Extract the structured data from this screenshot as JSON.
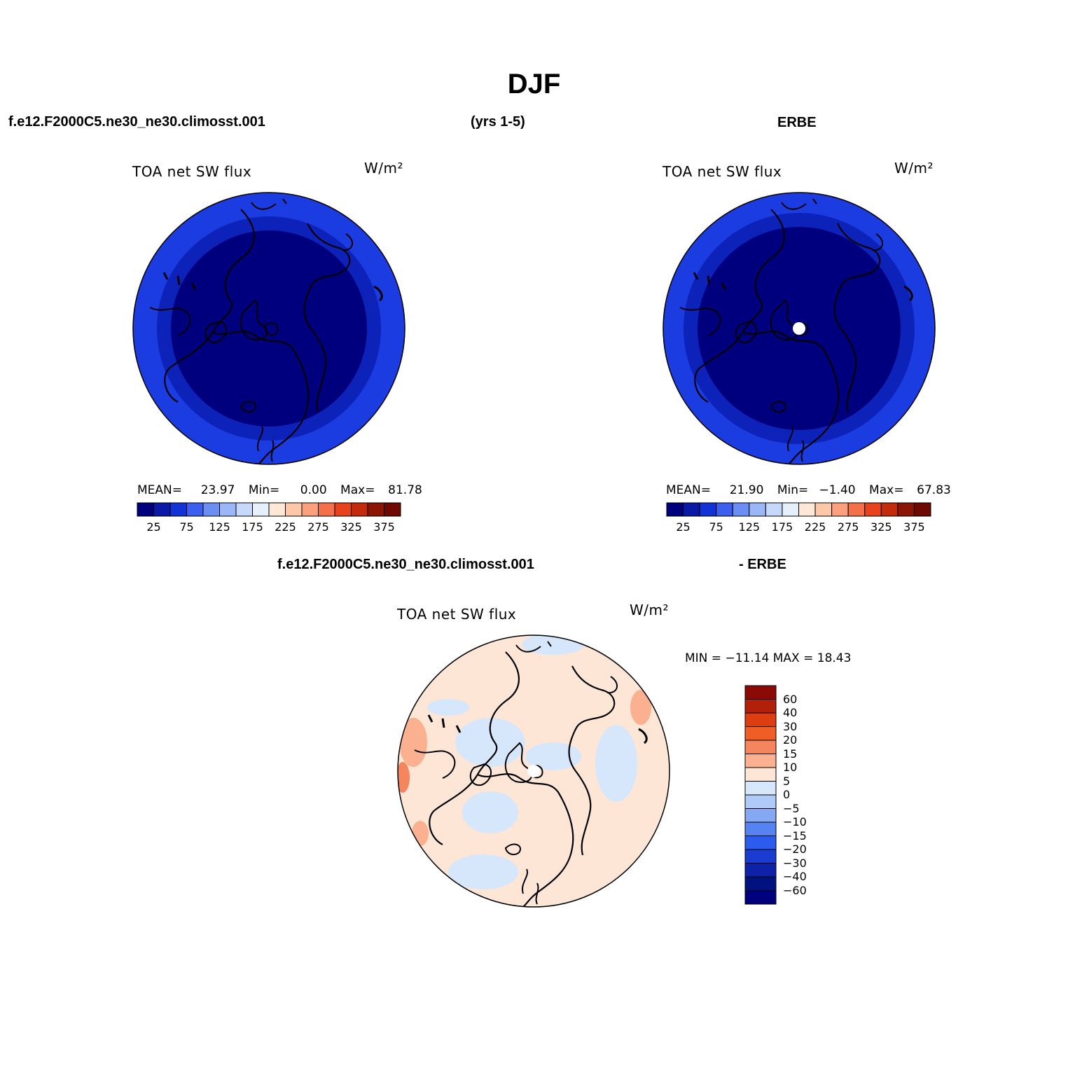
{
  "figure": {
    "title": "DJF",
    "case_name": "f.e12.F2000C5.ne30_ne30.climosst.001",
    "years": "(yrs 1-5)",
    "obs_name": "ERBE",
    "diff_case_name": "f.e12.F2000C5.ne30_ne30.climosst.001",
    "diff_obs_name": "- ERBE"
  },
  "panels": [
    {
      "id": "model",
      "variable": "TOA net SW flux",
      "units": "W/m²",
      "stats": {
        "mean_label": "MEAN=",
        "mean": "23.97",
        "min_label": "Min=",
        "min": "0.00",
        "max_label": "Max=",
        "max": "81.78"
      },
      "colorbar": [
        "25",
        "75",
        "125",
        "175",
        "225",
        "275",
        "325",
        "375"
      ]
    },
    {
      "id": "obs",
      "variable": "TOA net SW flux",
      "units": "W/m²",
      "stats": {
        "mean_label": "MEAN=",
        "mean": "21.90",
        "min_label": "Min=",
        "min": "−1.40",
        "max_label": "Max=",
        "max": "67.83"
      },
      "colorbar": [
        "25",
        "75",
        "125",
        "175",
        "225",
        "275",
        "325",
        "375"
      ]
    },
    {
      "id": "diff",
      "variable": "TOA net SW flux",
      "units": "W/m²",
      "stats_text": "MIN = −11.14 MAX =   18.43",
      "colorbar": [
        "60",
        "40",
        "30",
        "20",
        "15",
        "10",
        "5",
        "0",
        "−5",
        "−10",
        "−15",
        "−20",
        "−30",
        "−40",
        "−60"
      ]
    }
  ],
  "colors": {
    "abs_scale": [
      "#00007f",
      "#0a1aa6",
      "#1233d6",
      "#3d5ff0",
      "#6b8ef5",
      "#9bb7f8",
      "#c7d9fb",
      "#e6f0fd",
      "#fde7d6",
      "#fcc8a8",
      "#fba07d",
      "#f4704a",
      "#e8411e",
      "#c42a0c",
      "#8b1606",
      "#6e0a02"
    ],
    "diff_scale": [
      "#8b0a05",
      "#b3200a",
      "#dd3d0f",
      "#f15e25",
      "#f5855c",
      "#fbb08f",
      "#fde6d6",
      "#d6e7fb",
      "#b0cbf8",
      "#85a8f4",
      "#5683f1",
      "#2b5cee",
      "#1a3cd0",
      "#0d22a8",
      "#00127f"
    ],
    "ocean_dark": "#00007f",
    "ring_blue": "#1633d8",
    "diff_base": "#fde6d6",
    "diff_blue": "#d6e7fb"
  }
}
